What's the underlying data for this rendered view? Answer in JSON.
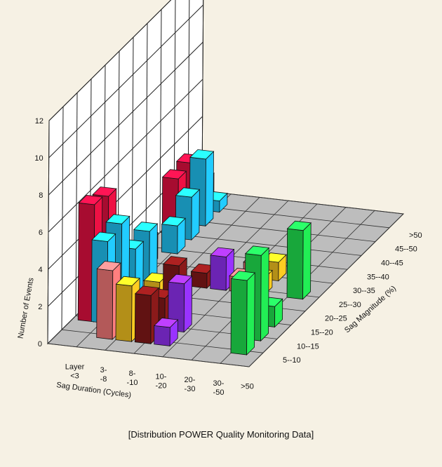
{
  "caption": "[Distribution POWER Quality Monitoring Data]",
  "chart_data": {
    "type": "bar3d",
    "title": "",
    "zlabel": "Number of Events",
    "xlabel": "Sag Duration (Cycles)",
    "ylabel": "Sag Magnitude (%)",
    "zlim": [
      0,
      12
    ],
    "z_ticks": [
      "0",
      "2",
      "4",
      "6",
      "8",
      "10",
      "12"
    ],
    "x_categories": [
      [
        "Layer",
        "<3"
      ],
      [
        "3-",
        "-8"
      ],
      [
        "8-",
        "-10"
      ],
      [
        "10-",
        "-20"
      ],
      [
        "20-",
        "-30"
      ],
      [
        "30-",
        "-50"
      ],
      [
        ">50"
      ]
    ],
    "y_categories": [
      "5--10",
      "10--15",
      "15--20",
      "20--25",
      "25--30",
      "30--35",
      "35--40",
      "40--45",
      "45--50",
      ">50"
    ],
    "colors": {
      "5--10": "#22ee55",
      "10--15": "#22ee55",
      "15--20": "#ffcc22",
      "20--25": "#ff7f7f",
      "25--30": "#9933ff",
      "30--35": "#8b1a1a",
      "35--40": "#ffcc22",
      "40--45": "#ff7f7f",
      "45--50": "#22ccff",
      ">50": "#ee1144"
    },
    "bars": [
      {
        "x": 1,
        "y": "5--10",
        "value": 4.0
      },
      {
        "x": 2,
        "y": "5--10",
        "value": 4.6
      },
      {
        "x": 3,
        "y": "5--10",
        "value": 1.1
      },
      {
        "x": 5,
        "y": "5--10",
        "value": 3.7
      },
      {
        "x": 5,
        "y": "15--20",
        "value": 0.9
      },
      {
        "x": 5,
        "y": "20--25",
        "value": 0.8
      },
      {
        "x": 6,
        "y": "15--20",
        "value": 1.0
      },
      {
        "x": 6,
        "y": "20--25",
        "value": 0.8
      },
      {
        "x": 5,
        "y": "25--30",
        "value": 1.8
      },
      {
        "x": 5,
        "y": "30--35",
        "value": 0.8
      },
      {
        "x": 1,
        "y": "40--45",
        "value": 3.7
      },
      {
        "x": 1,
        "y": "25--30",
        "value": 1.0
      },
      {
        "x": 2,
        "y": "25--30",
        "value": 2.6
      },
      {
        "x": 2,
        "y": "30--35",
        "value": 1.7
      },
      {
        "x": 3,
        "y": "30--35",
        "value": 2.7
      },
      {
        "x": 3,
        "y": "35--40",
        "value": 1.7
      },
      {
        "x": 1,
        "y": "30--35",
        "value": 2.6
      },
      {
        "x": 1,
        "y": "35--40",
        "value": 3.0
      },
      {
        "x": 2,
        "y": "45--50",
        "value": 4.4
      },
      {
        "x": 2,
        "y": ">50",
        "value": 6.3
      },
      {
        "x": 3,
        "y": "45--50",
        "value": 4.6
      },
      {
        "x": 3,
        "y": ">50",
        "value": 6.0
      },
      {
        "x": 4,
        "y": "45--50",
        "value": 2.5
      },
      {
        "x": 5,
        "y": "45--50",
        "value": 2.7
      },
      {
        "x": 6,
        "y": ">50",
        "value": 1.4
      },
      {
        "x": 7,
        "y": "45--50",
        "value": 1.5
      },
      {
        "x": 8,
        "y": "45--50",
        "value": 2.3
      },
      {
        "x": 8,
        "y": ">50",
        "value": 3.2
      },
      {
        "x": 9,
        "y": "45--50",
        "value": 3.6
      },
      {
        "x": 9,
        "y": ">50",
        "value": 3.3
      },
      {
        "x": 10,
        "y": "45--50",
        "value": 0.6
      },
      {
        "x": 10,
        "y": ">50",
        "value": 1.6
      }
    ],
    "grid": true
  }
}
